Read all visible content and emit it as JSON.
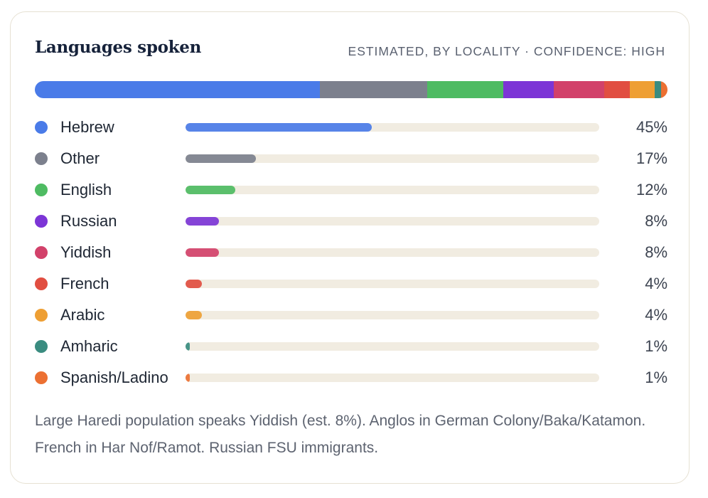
{
  "card": {
    "title": "Languages spoken",
    "subtitle": "ESTIMATED, BY LOCALITY · CONFIDENCE: HIGH",
    "note": "Large Haredi population speaks Yiddish (est. 8%). Anglos in German Colony/Baka/Katamon. French in Har Nof/Ramot. Russian FSU immigrants."
  },
  "chart_data": {
    "type": "bar",
    "title": "Languages spoken",
    "subtitle": "ESTIMATED, BY LOCALITY · CONFIDENCE: HIGH",
    "categories": [
      "Hebrew",
      "Other",
      "English",
      "Russian",
      "Yiddish",
      "French",
      "Arabic",
      "Amharic",
      "Spanish/Ladino"
    ],
    "values": [
      45,
      17,
      12,
      8,
      8,
      4,
      4,
      1,
      1
    ],
    "value_labels": [
      "45%",
      "17%",
      "12%",
      "8%",
      "8%",
      "4%",
      "4%",
      "1%",
      "1%"
    ],
    "colors": [
      "#4a7be8",
      "#7c808d",
      "#4ebb62",
      "#7c35d6",
      "#d2416a",
      "#e14e41",
      "#ee9f34",
      "#3a8c80",
      "#ec7032"
    ],
    "unit": "%",
    "ylim": [
      0,
      100
    ],
    "stacked_summary_bar": true
  }
}
